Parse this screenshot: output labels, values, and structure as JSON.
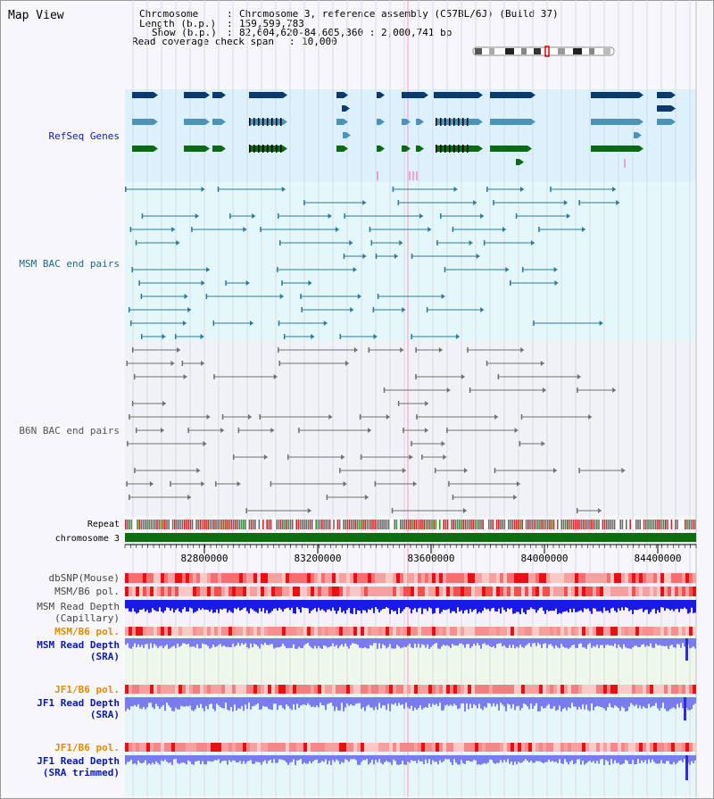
{
  "title": "Map View",
  "header": {
    "chromosome_key": "Chromosome",
    "chromosome_val": "Chromosome 3, reference assembly (C57BL/6J) (Build 37)",
    "length_key": "Length (b.p.)",
    "length_val": "159,599,783",
    "show_key": "Show (b.p.)",
    "show_val": "82,604,620-84,605,360 : 2,000,741 bp",
    "coverage_key": "Read coverage check span",
    "coverage_val": "10,000"
  },
  "tracks": {
    "refseq": "RefSeq Genes",
    "msm_bac": "MSM BAC end pairs",
    "b6n_bac": "B6N BAC end pairs",
    "repeat": "Repeat",
    "chromosome": "chromosome 3",
    "dbsnp": "dbSNP(Mouse)",
    "msm_pol": "MSM/B6 pol.",
    "msm_depth_cap_1": "MSM Read Depth",
    "msm_depth_cap_2": "(Capillary)",
    "msm_pol2": "MSM/B6 pol.",
    "msm_depth_sra_1": "MSM Read Depth",
    "msm_depth_sra_2": "(SRA)",
    "jf1_pol": "JF1/B6 pol.",
    "jf1_depth_sra_1": "JF1 Read Depth",
    "jf1_depth_sra_2": "(SRA)",
    "jf1_pol2": "JF1/B6 pol.",
    "jf1_depth_trim_1": "JF1 Read Depth",
    "jf1_depth_trim_2": "(SRA trimmed)"
  },
  "ruler": {
    "ticks": [
      "82800000",
      "83200000",
      "83600000",
      "84000000",
      "84400000"
    ]
  },
  "colors": {
    "refseq_bg": "#dcf1fb",
    "msm_bac_bg": "#e4f8fb",
    "b6n_bac_bg": "#f1f2f6",
    "gene_dark": "#0b3a6e",
    "gene_mid": "#4b93b8",
    "gene_green": "#0b6b14",
    "msm_line": "#2a7a9a",
    "b6n_line": "#707070",
    "chrom_bar": "#0e6e0e",
    "depth_blue": "#1a1ae6",
    "depth_light": "#7b7bf0",
    "label_blue": "#0a1aa8",
    "label_orange": "#e08a00",
    "label_teal": "#1a6a8a"
  }
}
